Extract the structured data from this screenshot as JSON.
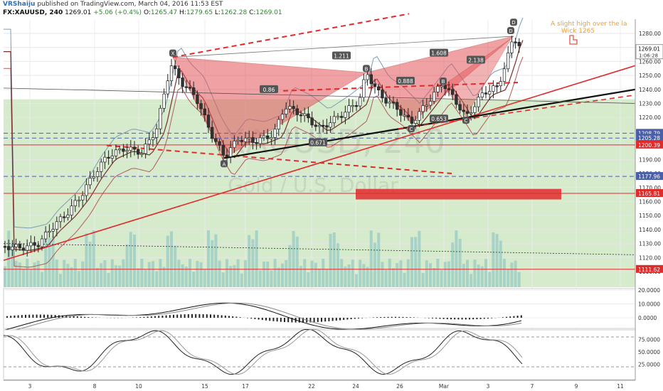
{
  "header": {
    "author": "VRShaiju",
    "published_text": "published on TradingView.com, March 04, 2016 11:53 EST",
    "symbol": "FX:XAUUSD, 240",
    "last": "1269.01",
    "change": "+5.06 (+0.4%)",
    "o_label": "O:",
    "o_value": "1265.47",
    "h_label": "H:",
    "h_value": "1279.65",
    "l_label": "L:",
    "l_value": "1262.28",
    "c_label": "C:",
    "c_value": "1269.01"
  },
  "colors": {
    "pattern_fill": "#e2565a",
    "trend_red": "#e02b2b",
    "volume": "#7fbfc0",
    "background_zone": "#cfe6c3",
    "bullish": "#ffffff",
    "bearish": "#333333"
  },
  "watermark": {
    "line1": "XAUUSD, 240",
    "line2": "Gold / U.S. Dollar"
  },
  "annotation": {
    "line1": "A slight high over the la",
    "line2": "Wick 1265"
  },
  "pattern": {
    "points": [
      "X",
      "A",
      "B",
      "C",
      "D",
      "B",
      "C",
      "D"
    ],
    "ratios": [
      "1.211",
      "0.86",
      "0.888",
      "0.671",
      "1.608",
      "2.138",
      "0.653"
    ]
  },
  "chart_data": [
    {
      "type": "candlestick",
      "title": "",
      "ylim": [
        1100,
        1285
      ],
      "y_ticks": [
        "1280.00",
        "1270.00",
        "1260.00",
        "1250.00",
        "1240.00",
        "1230.00",
        "1220.00",
        "1210.00",
        "1200.00",
        "1190.00",
        "1180.00",
        "1170.00",
        "1160.00",
        "1150.00",
        "1140.00",
        "1130.00",
        "1120.00",
        "1110.00"
      ],
      "x_ticks": [
        "3",
        "8",
        "10",
        "15",
        "17",
        "22",
        "24",
        "26",
        "Mar",
        "3",
        "7",
        "9",
        "11"
      ],
      "price_labels": [
        {
          "value": "1269.01",
          "sub": "1:06:28",
          "y": 1269.01
        },
        {
          "value": "1208.79",
          "y": 1208.79
        },
        {
          "value": "1205.28",
          "y": 1205.28
        },
        {
          "value": "1200.39",
          "y": 1200.39
        },
        {
          "value": "1177.96",
          "y": 1177.96
        },
        {
          "value": "1165.81",
          "y": 1165.81
        },
        {
          "value": "1111.62",
          "y": 1111.62
        }
      ]
    },
    {
      "type": "line",
      "title": "MACD",
      "y_ticks": [
        "20.0000",
        "10.0000",
        "0.0000"
      ]
    },
    {
      "type": "line",
      "title": "Stochastic",
      "y_ticks": [
        "75.0000",
        "50.0000",
        "25.0000"
      ]
    }
  ]
}
